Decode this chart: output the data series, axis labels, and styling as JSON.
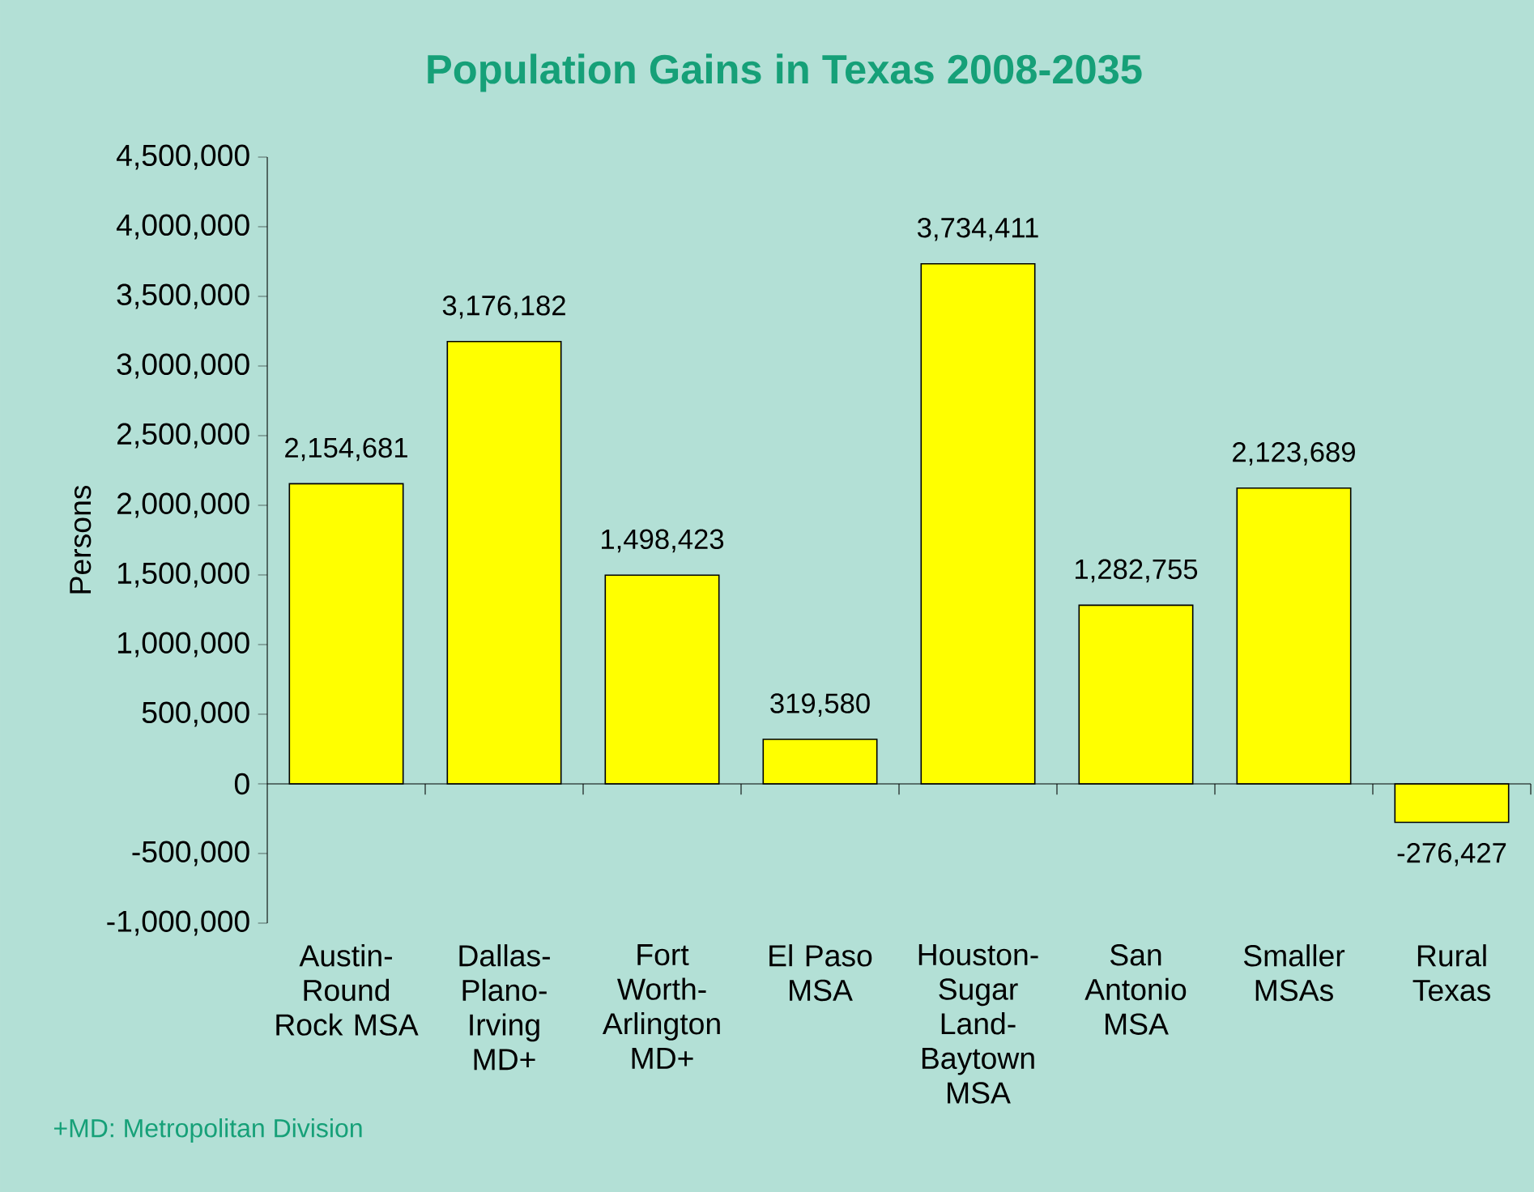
{
  "chart_data": {
    "type": "bar",
    "title": "Population Gains in Texas 2008-2035",
    "ylabel": "Persons",
    "categories": [
      "Austin-Round Rock MSA",
      "Dallas-Plano-Irving MD+",
      "Fort Worth-Arlington MD+",
      "El Paso MSA",
      "Houston-Sugar Land-Baytown MSA",
      "San Antonio MSA",
      "Smaller MSAs",
      "Rural Texas"
    ],
    "values": [
      2154681,
      3176182,
      1498423,
      319580,
      3734411,
      1282755,
      2123689,
      -276427
    ],
    "value_labels": [
      "2,154,681",
      "3,176,182",
      "1,498,423",
      "319,580",
      "3,734,411",
      "1,282,755",
      "2,123,689",
      "-276,427"
    ],
    "color": "#ffff00",
    "ylim": [
      -1000000,
      4500000
    ],
    "yticks": [
      {
        "value": -1000000,
        "label": "-1,000,000"
      },
      {
        "value": -500000,
        "label": "-500,000"
      },
      0,
      {
        "value": 500000,
        "label": "500,000"
      },
      {
        "value": 1000000,
        "label": "1,000,000"
      },
      {
        "value": 1500000,
        "label": "1,500,000"
      },
      {
        "value": 2000000,
        "label": "2,000,000"
      },
      {
        "value": 2500000,
        "label": "2,500,000"
      },
      {
        "value": 3000000,
        "label": "3,000,000"
      },
      {
        "value": 3500000,
        "label": "3,500,000"
      },
      {
        "value": 4000000,
        "label": "4,000,000"
      },
      {
        "value": 4500000,
        "label": "4,500,000"
      }
    ],
    "annotations": [
      "+MD: Metropolitan Division"
    ]
  }
}
